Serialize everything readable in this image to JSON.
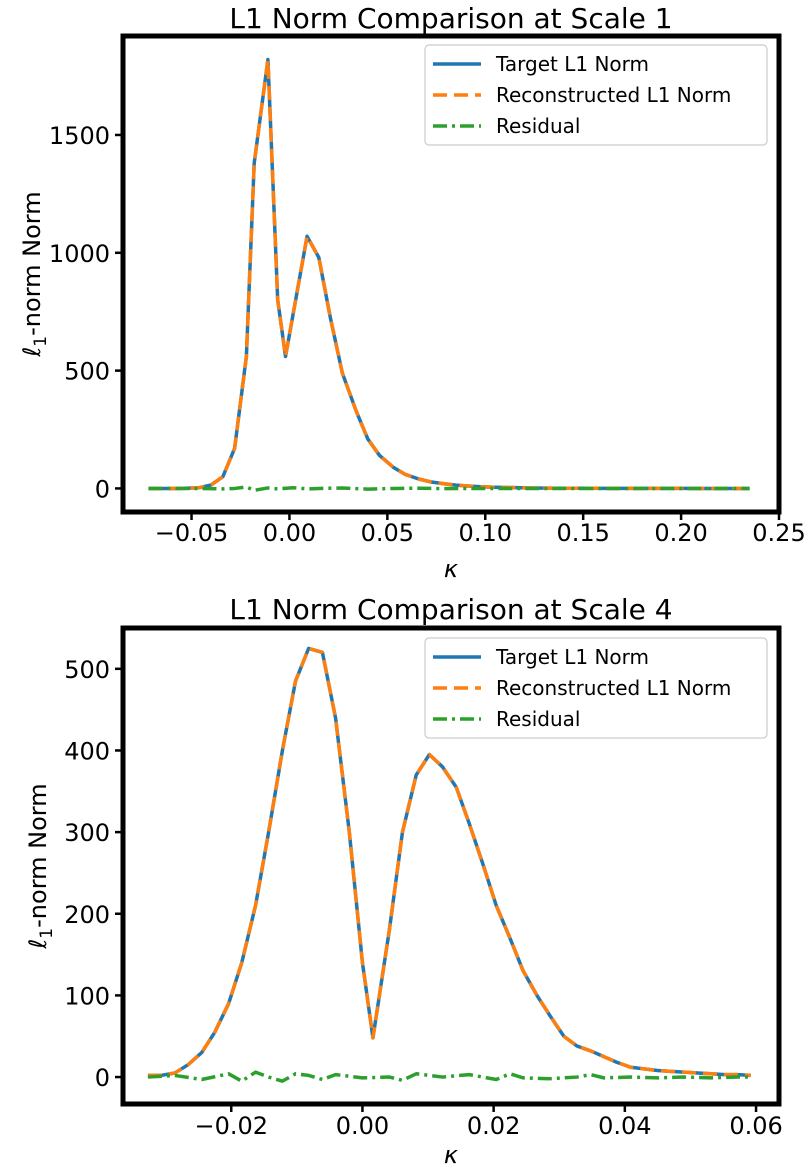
{
  "chart_data": [
    {
      "type": "line",
      "title": "L1 Norm Comparison at Scale 1",
      "xlabel": "κ",
      "ylabel_prefix": "ℓ",
      "ylabel_sub": "1",
      "ylabel_suffix": "-norm Norm",
      "xlim": [
        -0.085,
        0.25
      ],
      "ylim": [
        -100,
        1920
      ],
      "xticks": [
        -0.05,
        0.0,
        0.05,
        0.1,
        0.15,
        0.2,
        0.25
      ],
      "xtick_labels": [
        "−0.05",
        "0.00",
        "0.05",
        "0.10",
        "0.15",
        "0.20",
        "0.25"
      ],
      "yticks": [
        0,
        500,
        1000,
        1500
      ],
      "ytick_labels": [
        "0",
        "500",
        "1000",
        "1500"
      ],
      "legend": {
        "position": "top-right",
        "entries": [
          "Target L1 Norm",
          "Reconstructed L1 Norm",
          "Residual"
        ]
      },
      "series": [
        {
          "name": "Target L1 Norm",
          "color": "#1f77b4",
          "style": "solid",
          "points": [
            [
              -0.072,
              0
            ],
            [
              -0.066,
              0
            ],
            [
              -0.059,
              0
            ],
            [
              -0.053,
              1
            ],
            [
              -0.046,
              3
            ],
            [
              -0.04,
              15
            ],
            [
              -0.034,
              50
            ],
            [
              -0.028,
              170
            ],
            [
              -0.022,
              560
            ],
            [
              -0.018,
              1380
            ],
            [
              -0.011,
              1820
            ],
            [
              -0.006,
              800
            ],
            [
              -0.002,
              560
            ],
            [
              0.009,
              1070
            ],
            [
              0.015,
              980
            ],
            [
              0.021,
              720
            ],
            [
              0.027,
              490
            ],
            [
              0.034,
              330
            ],
            [
              0.04,
              210
            ],
            [
              0.046,
              140
            ],
            [
              0.053,
              90
            ],
            [
              0.059,
              60
            ],
            [
              0.066,
              40
            ],
            [
              0.072,
              28
            ],
            [
              0.079,
              20
            ],
            [
              0.085,
              14
            ],
            [
              0.092,
              10
            ],
            [
              0.098,
              7
            ],
            [
              0.105,
              5
            ],
            [
              0.111,
              4
            ],
            [
              0.118,
              3
            ],
            [
              0.124,
              2
            ],
            [
              0.131,
              1.5
            ],
            [
              0.137,
              1
            ],
            [
              0.144,
              1
            ],
            [
              0.15,
              0.8
            ],
            [
              0.16,
              0.5
            ],
            [
              0.17,
              0.3
            ],
            [
              0.18,
              0.2
            ],
            [
              0.19,
              0.1
            ],
            [
              0.2,
              0.1
            ],
            [
              0.21,
              0
            ],
            [
              0.22,
              0
            ],
            [
              0.235,
              0
            ]
          ]
        },
        {
          "name": "Reconstructed L1 Norm",
          "color": "#ff7f0e",
          "style": "dashed",
          "points": [
            [
              -0.072,
              0
            ],
            [
              -0.066,
              0
            ],
            [
              -0.059,
              0
            ],
            [
              -0.053,
              1
            ],
            [
              -0.046,
              3
            ],
            [
              -0.04,
              15
            ],
            [
              -0.034,
              50
            ],
            [
              -0.028,
              170
            ],
            [
              -0.022,
              560
            ],
            [
              -0.018,
              1380
            ],
            [
              -0.011,
              1820
            ],
            [
              -0.006,
              800
            ],
            [
              -0.002,
              560
            ],
            [
              0.009,
              1070
            ],
            [
              0.015,
              980
            ],
            [
              0.021,
              720
            ],
            [
              0.027,
              490
            ],
            [
              0.034,
              330
            ],
            [
              0.04,
              210
            ],
            [
              0.046,
              140
            ],
            [
              0.053,
              90
            ],
            [
              0.059,
              60
            ],
            [
              0.066,
              40
            ],
            [
              0.072,
              28
            ],
            [
              0.079,
              20
            ],
            [
              0.085,
              14
            ],
            [
              0.092,
              10
            ],
            [
              0.098,
              7
            ],
            [
              0.105,
              5
            ],
            [
              0.111,
              4
            ],
            [
              0.118,
              3
            ],
            [
              0.124,
              2
            ],
            [
              0.131,
              1.5
            ],
            [
              0.137,
              1
            ],
            [
              0.144,
              1
            ],
            [
              0.15,
              0.8
            ],
            [
              0.16,
              0.5
            ],
            [
              0.17,
              0.3
            ],
            [
              0.18,
              0.2
            ],
            [
              0.19,
              0.1
            ],
            [
              0.2,
              0.1
            ],
            [
              0.21,
              0
            ],
            [
              0.22,
              0
            ],
            [
              0.235,
              0
            ]
          ]
        },
        {
          "name": "Residual",
          "color": "#2ca02c",
          "style": "dashdot",
          "points": [
            [
              -0.072,
              0
            ],
            [
              -0.059,
              0
            ],
            [
              -0.046,
              0
            ],
            [
              -0.034,
              -2
            ],
            [
              -0.028,
              0
            ],
            [
              -0.022,
              6
            ],
            [
              -0.018,
              -8
            ],
            [
              -0.011,
              2
            ],
            [
              -0.006,
              -2
            ],
            [
              0.002,
              3
            ],
            [
              0.009,
              -2
            ],
            [
              0.015,
              0
            ],
            [
              0.027,
              2
            ],
            [
              0.04,
              -3
            ],
            [
              0.053,
              0
            ],
            [
              0.066,
              1
            ],
            [
              0.079,
              -1
            ],
            [
              0.092,
              0
            ],
            [
              0.105,
              0
            ],
            [
              0.118,
              0
            ],
            [
              0.131,
              0
            ],
            [
              0.15,
              0
            ],
            [
              0.17,
              0
            ],
            [
              0.19,
              0
            ],
            [
              0.21,
              0
            ],
            [
              0.235,
              0
            ]
          ]
        }
      ]
    },
    {
      "type": "line",
      "title": "L1 Norm Comparison at Scale 4",
      "xlabel": "κ",
      "ylabel_prefix": "ℓ",
      "ylabel_sub": "1",
      "ylabel_suffix": "-norm Norm",
      "xlim": [
        -0.0365,
        0.0635
      ],
      "ylim": [
        -33,
        550
      ],
      "xticks": [
        -0.02,
        0.0,
        0.02,
        0.04,
        0.06
      ],
      "xtick_labels": [
        "−0.02",
        "0.00",
        "0.02",
        "0.04",
        "0.06"
      ],
      "yticks": [
        0,
        100,
        200,
        300,
        400,
        500
      ],
      "ytick_labels": [
        "0",
        "100",
        "200",
        "300",
        "400",
        "500"
      ],
      "legend": {
        "position": "top-right",
        "entries": [
          "Target L1 Norm",
          "Reconstructed L1 Norm",
          "Residual"
        ]
      },
      "series": [
        {
          "name": "Target L1 Norm",
          "color": "#1f77b4",
          "style": "solid",
          "points": [
            [
              -0.0327,
              2
            ],
            [
              -0.0307,
              2
            ],
            [
              -0.0286,
              5
            ],
            [
              -0.0266,
              15
            ],
            [
              -0.0245,
              30
            ],
            [
              -0.0225,
              55
            ],
            [
              -0.0204,
              90
            ],
            [
              -0.0184,
              140
            ],
            [
              -0.0163,
              210
            ],
            [
              -0.0143,
              300
            ],
            [
              -0.0122,
              400
            ],
            [
              -0.0102,
              485
            ],
            [
              -0.0082,
              525
            ],
            [
              -0.0061,
              520
            ],
            [
              -0.0041,
              440
            ],
            [
              -0.002,
              300
            ],
            [
              0.0,
              140
            ],
            [
              0.0016,
              48
            ],
            [
              0.0041,
              180
            ],
            [
              0.0061,
              300
            ],
            [
              0.0082,
              370
            ],
            [
              0.0102,
              395
            ],
            [
              0.0122,
              380
            ],
            [
              0.0143,
              355
            ],
            [
              0.0163,
              310
            ],
            [
              0.0184,
              260
            ],
            [
              0.0204,
              210
            ],
            [
              0.0225,
              170
            ],
            [
              0.0245,
              130
            ],
            [
              0.0266,
              100
            ],
            [
              0.0286,
              75
            ],
            [
              0.0307,
              50
            ],
            [
              0.0327,
              38
            ],
            [
              0.0348,
              32
            ],
            [
              0.0368,
              25
            ],
            [
              0.0388,
              18
            ],
            [
              0.0409,
              12
            ],
            [
              0.0429,
              10
            ],
            [
              0.045,
              8
            ],
            [
              0.047,
              7
            ],
            [
              0.049,
              6
            ],
            [
              0.0511,
              5
            ],
            [
              0.0531,
              4
            ],
            [
              0.0552,
              3
            ],
            [
              0.0572,
              3
            ],
            [
              0.0592,
              2
            ]
          ]
        },
        {
          "name": "Reconstructed L1 Norm",
          "color": "#ff7f0e",
          "style": "dashed",
          "points": [
            [
              -0.0327,
              2
            ],
            [
              -0.0307,
              2
            ],
            [
              -0.0286,
              5
            ],
            [
              -0.0266,
              15
            ],
            [
              -0.0245,
              30
            ],
            [
              -0.0225,
              55
            ],
            [
              -0.0204,
              90
            ],
            [
              -0.0184,
              140
            ],
            [
              -0.0163,
              210
            ],
            [
              -0.0143,
              300
            ],
            [
              -0.0122,
              400
            ],
            [
              -0.0102,
              485
            ],
            [
              -0.0082,
              525
            ],
            [
              -0.0061,
              520
            ],
            [
              -0.0041,
              440
            ],
            [
              -0.002,
              300
            ],
            [
              0.0,
              140
            ],
            [
              0.0016,
              48
            ],
            [
              0.0041,
              180
            ],
            [
              0.0061,
              300
            ],
            [
              0.0082,
              370
            ],
            [
              0.0102,
              395
            ],
            [
              0.0122,
              380
            ],
            [
              0.0143,
              355
            ],
            [
              0.0163,
              310
            ],
            [
              0.0184,
              260
            ],
            [
              0.0204,
              210
            ],
            [
              0.0225,
              170
            ],
            [
              0.0245,
              130
            ],
            [
              0.0266,
              100
            ],
            [
              0.0286,
              75
            ],
            [
              0.0307,
              50
            ],
            [
              0.0327,
              38
            ],
            [
              0.0348,
              32
            ],
            [
              0.0368,
              25
            ],
            [
              0.0388,
              18
            ],
            [
              0.0409,
              12
            ],
            [
              0.0429,
              10
            ],
            [
              0.045,
              8
            ],
            [
              0.047,
              7
            ],
            [
              0.049,
              6
            ],
            [
              0.0511,
              5
            ],
            [
              0.0531,
              4
            ],
            [
              0.0552,
              3
            ],
            [
              0.0572,
              3
            ],
            [
              0.0592,
              2
            ]
          ]
        },
        {
          "name": "Residual",
          "color": "#2ca02c",
          "style": "dashdot",
          "points": [
            [
              -0.0327,
              0
            ],
            [
              -0.0286,
              2
            ],
            [
              -0.0245,
              -3
            ],
            [
              -0.0204,
              4
            ],
            [
              -0.0184,
              -5
            ],
            [
              -0.0163,
              6
            ],
            [
              -0.0143,
              0
            ],
            [
              -0.0122,
              -5
            ],
            [
              -0.0102,
              4
            ],
            [
              -0.0082,
              2
            ],
            [
              -0.0061,
              -3
            ],
            [
              -0.0041,
              3
            ],
            [
              -0.002,
              1
            ],
            [
              0.0,
              -1
            ],
            [
              0.0041,
              0
            ],
            [
              0.0061,
              -4
            ],
            [
              0.0082,
              4
            ],
            [
              0.0122,
              0
            ],
            [
              0.0163,
              3
            ],
            [
              0.0204,
              -3
            ],
            [
              0.0225,
              4
            ],
            [
              0.0245,
              -1
            ],
            [
              0.0286,
              -2
            ],
            [
              0.0327,
              0
            ],
            [
              0.0348,
              3
            ],
            [
              0.0368,
              -1
            ],
            [
              0.0409,
              0
            ],
            [
              0.045,
              -1
            ],
            [
              0.049,
              0
            ],
            [
              0.0531,
              -1
            ],
            [
              0.0572,
              0
            ],
            [
              0.0592,
              0
            ]
          ]
        }
      ]
    }
  ]
}
